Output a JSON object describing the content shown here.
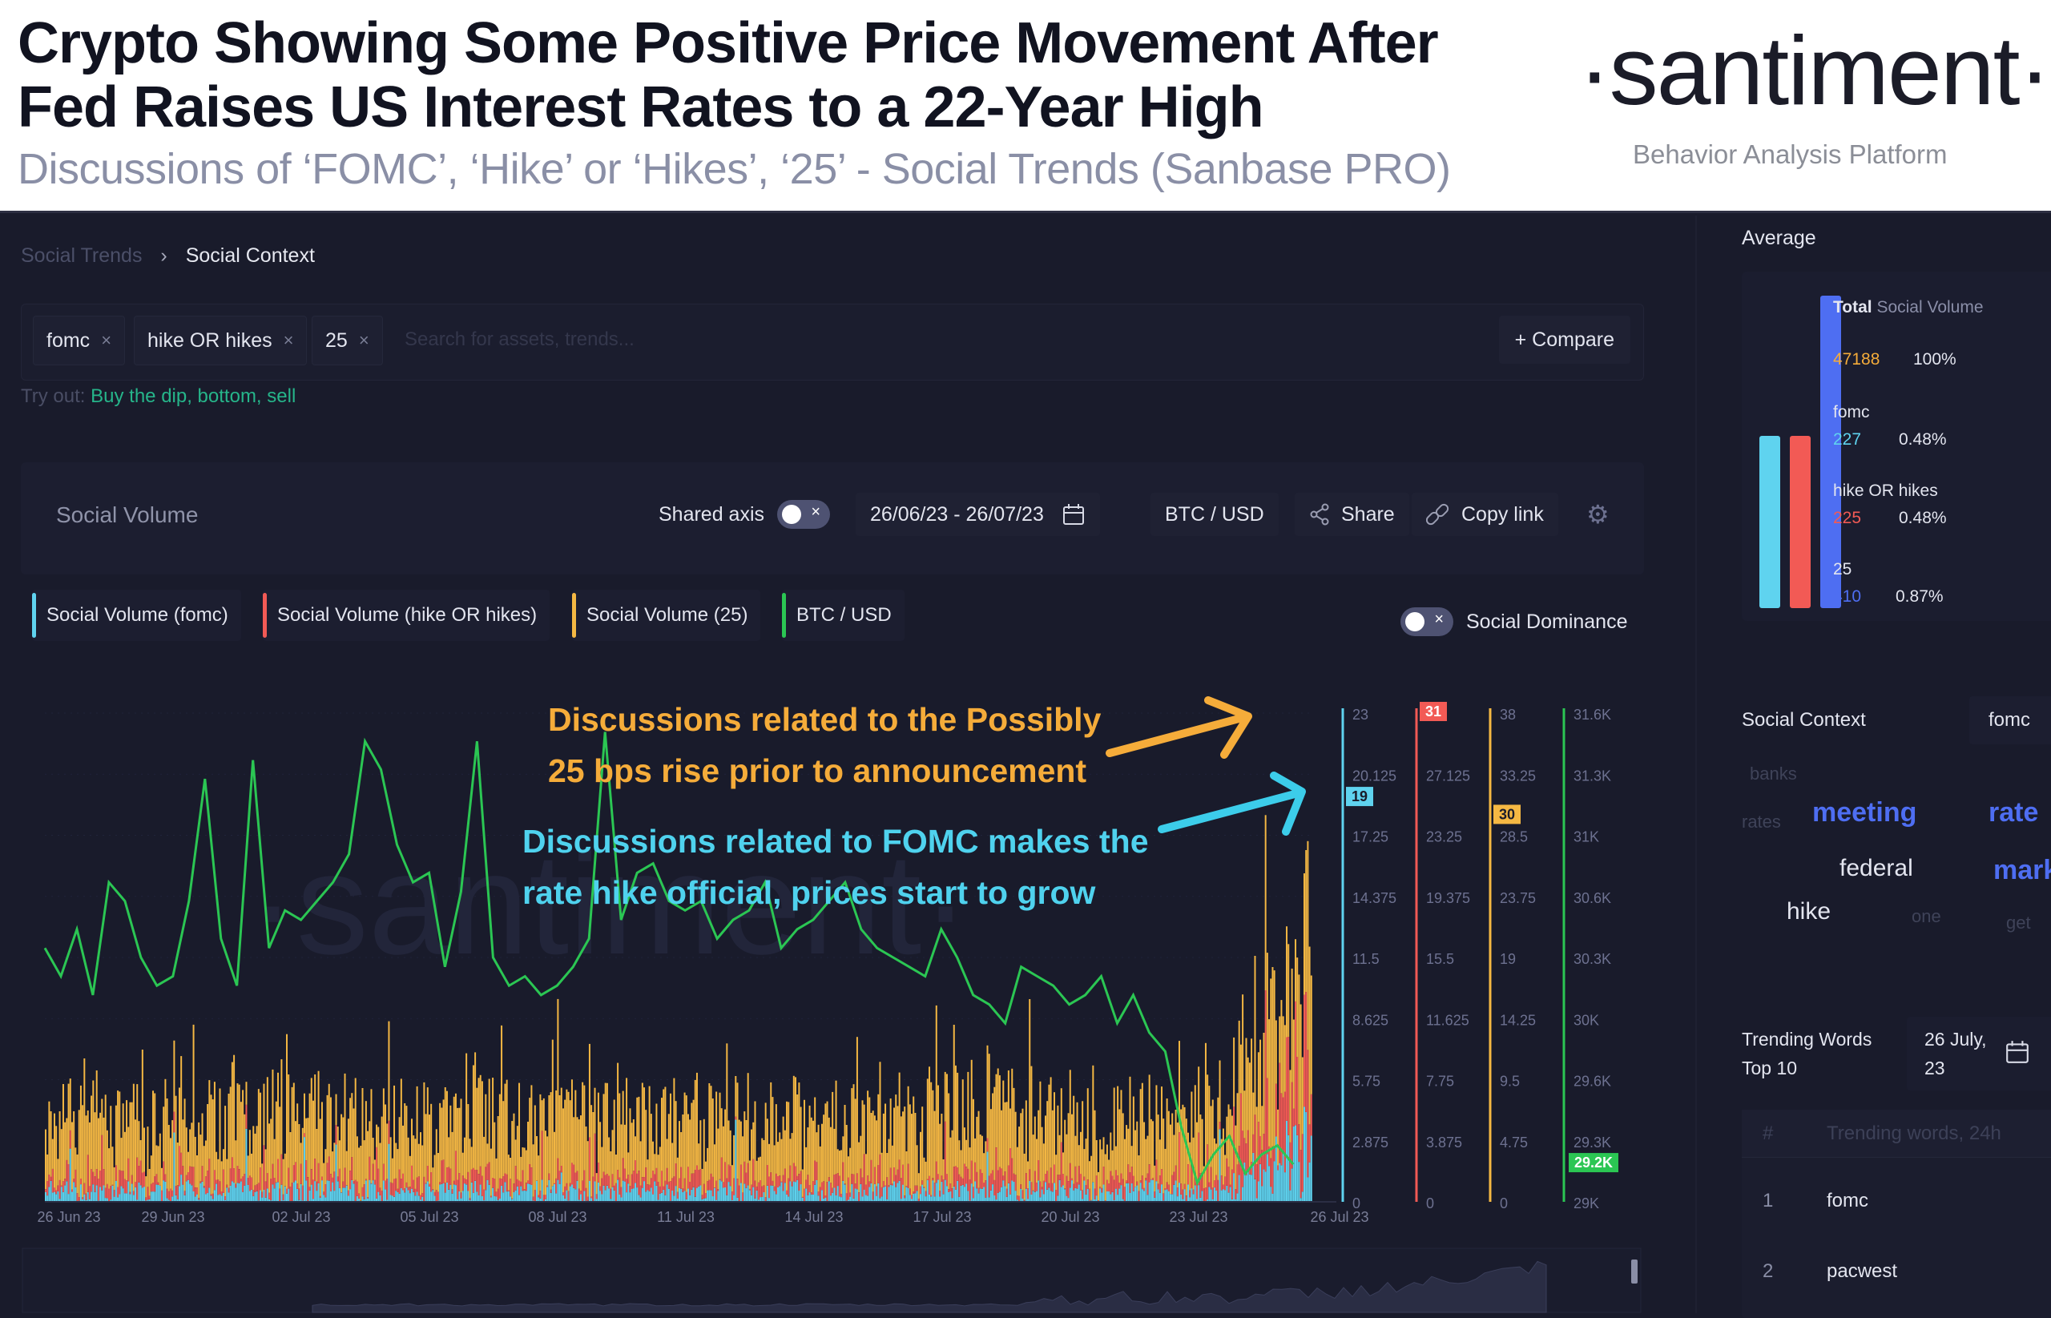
{
  "banner": {
    "headline_line1": "Crypto Showing Some Positive Price Movement After",
    "headline_line2": "Fed Raises US Interest Rates to a 22-Year High",
    "subheadline": "Discussions of ‘FOMC’, ‘Hike’ or ‘Hikes’, ‘25’ - Social Trends (Sanbase PRO)",
    "brand": "·santiment·",
    "brand_tagline": "Behavior Analysis Platform"
  },
  "breadcrumb": {
    "parent": "Social Trends",
    "separator": "›",
    "current": "Social Context"
  },
  "search": {
    "chips": [
      {
        "label": "fomc",
        "remove": "×"
      },
      {
        "label": "hike OR hikes",
        "remove": "×"
      },
      {
        "label": "25",
        "remove": "×"
      }
    ],
    "placeholder": "Search for assets, trends...",
    "compare_label": "+ Compare",
    "tryout_label": "Try out:",
    "tryout_suggestions": "Buy the dip, bottom, sell"
  },
  "toolbar": {
    "title": "Social Volume",
    "shared_axis_label": "Shared axis",
    "shared_axis_on": false,
    "date_range": "26/06/23 - 26/07/23",
    "pair": "BTC / USD",
    "share_label": "Share",
    "copy_link_label": "Copy link",
    "toggle_x": "×"
  },
  "legend": {
    "items": [
      {
        "label": "Social Volume (fomc)",
        "color": "#5fd3ef"
      },
      {
        "label": "Social Volume (hike OR hikes)",
        "color": "#f25a55"
      },
      {
        "label": "Social Volume (25)",
        "color": "#f5b843"
      },
      {
        "label": "BTC / USD",
        "color": "#2bc653"
      }
    ],
    "social_dominance_label": "Social Dominance",
    "social_dominance_on": false
  },
  "annotations": {
    "orange_line1": "Discussions related to the Possibly",
    "orange_line2": "25 bps rise prior to announcement",
    "cyan_line1": "Discussions related to FOMC makes the",
    "cyan_line2": "rate hike official, prices start to grow",
    "orange_color": "#f5ac3a",
    "cyan_color": "#4fd2ee"
  },
  "chart_data": {
    "type": "bar",
    "title": "Social Volume",
    "xlabel": "",
    "ylabel": "",
    "x_ticks": [
      "26 Jun 23",
      "29 Jun 23",
      "02 Jul 23",
      "05 Jul 23",
      "08 Jul 23",
      "11 Jul 23",
      "14 Jul 23",
      "17 Jul 23",
      "20 Jul 23",
      "23 Jul 23",
      "26 Jul 23"
    ],
    "watermark": "·santiment·",
    "grid": true,
    "axes": [
      {
        "series": "Social Volume (fomc)",
        "color": "#5fd3ef",
        "ylim": [
          0,
          23
        ],
        "ticks": [
          "23",
          "20.125",
          "17.25",
          "14.375",
          "11.5",
          "8.625",
          "5.75",
          "2.875",
          "0"
        ],
        "current_value": "19"
      },
      {
        "series": "Social Volume (hike OR hikes)",
        "color": "#f25a55",
        "ylim": [
          0,
          31
        ],
        "ticks": [
          "31",
          "27.125",
          "23.25",
          "19.375",
          "15.5",
          "11.625",
          "7.75",
          "3.875",
          "0"
        ],
        "current_value": "31"
      },
      {
        "series": "Social Volume (25)",
        "color": "#f5b843",
        "ylim": [
          0,
          38
        ],
        "ticks": [
          "38",
          "33.25",
          "28.5",
          "23.75",
          "19",
          "14.25",
          "9.5",
          "4.75",
          "0"
        ],
        "current_value": "30"
      },
      {
        "series": "BTC / USD",
        "color": "#2bc653",
        "ylim": [
          29000,
          31600
        ],
        "ticks": [
          "31.6K",
          "31.3K",
          "31K",
          "30.6K",
          "30.3K",
          "30K",
          "29.6K",
          "29.3K",
          "29K"
        ],
        "current_value": "29.2K"
      }
    ],
    "series": [
      {
        "name": "BTC / USD",
        "type": "line",
        "color": "#2bc653",
        "values": [
          30350,
          30200,
          30450,
          30100,
          30700,
          30600,
          30300,
          30150,
          30200,
          30600,
          31250,
          30400,
          30150,
          31350,
          30350,
          30550,
          30500,
          30600,
          30700,
          30850,
          31450,
          31300,
          30900,
          30700,
          30750,
          30250,
          30650,
          31450,
          30300,
          30150,
          30200,
          30100,
          30150,
          30250,
          30400,
          31500,
          30500,
          30750,
          30800,
          30600,
          30550,
          30600,
          30400,
          30500,
          30550,
          30700,
          30350,
          30450,
          30500,
          30600,
          30700,
          30450,
          30350,
          30300,
          30250,
          30200,
          30450,
          30300,
          30100,
          30050,
          29950,
          30250,
          30200,
          30150,
          30050,
          30100,
          30200,
          29950,
          30100,
          29900,
          29800,
          29400,
          29100,
          29250,
          29350,
          29150,
          29250,
          29300,
          29200
        ]
      },
      {
        "name": "Social Volume (25)",
        "type": "bar",
        "color": "#f5b843",
        "note": "hourly stacked bars; typical 8-20, spikes to ~38 on 25-26 Jul"
      },
      {
        "name": "Social Volume (hike OR hikes)",
        "type": "bar",
        "color": "#f25a55",
        "note": "stacked; rises to ~31 on 26 Jul"
      },
      {
        "name": "Social Volume (fomc)",
        "type": "bar",
        "color": "#5fd3ef",
        "note": "stacked; spike to ~23 at end, current 19"
      }
    ]
  },
  "side": {
    "average_title": "Average",
    "average": [
      {
        "label_bold": "Total",
        "label_rest": "Social Volume",
        "value": "47188",
        "pct": "100%",
        "color": "#f5ac3a"
      },
      {
        "label": "fomc",
        "value": "227",
        "pct": "0.48%",
        "color": "#5fd3ef"
      },
      {
        "label": "hike OR hikes",
        "value": "225",
        "pct": "0.48%",
        "color": "#f25a55"
      },
      {
        "label": "25",
        "value": "410",
        "pct": "0.87%",
        "color": "#4e6ef2"
      }
    ],
    "average_bars": [
      {
        "name": "fomc",
        "share": 0.55,
        "color": "#5fd3ef"
      },
      {
        "name": "hike OR hikes",
        "share": 0.55,
        "color": "#f25a55"
      },
      {
        "name": "25",
        "share": 1.0,
        "color": "#4e6ef2"
      }
    ],
    "social_context_title": "Social Context",
    "social_context_selected": "fomc",
    "cloud": [
      {
        "word": "banks",
        "weight": 1
      },
      {
        "word": "rates",
        "weight": 1
      },
      {
        "word": "meeting",
        "weight": 3
      },
      {
        "word": "rate",
        "weight": 3
      },
      {
        "word": "federal",
        "weight": 2
      },
      {
        "word": "mark",
        "weight": 3
      },
      {
        "word": "hike",
        "weight": 2
      },
      {
        "word": "one",
        "weight": 1
      },
      {
        "word": "get",
        "weight": 1
      }
    ],
    "trending_title_line1": "Trending Words",
    "trending_title_line2": "Top 10",
    "trending_date_line1": "26 July,",
    "trending_date_line2": "23",
    "trending_header_rank": "#",
    "trending_header_word": "Trending words, 24h",
    "trending_rows": [
      {
        "rank": "1",
        "word": "fomc"
      },
      {
        "rank": "2",
        "word": "pacwest"
      }
    ]
  }
}
